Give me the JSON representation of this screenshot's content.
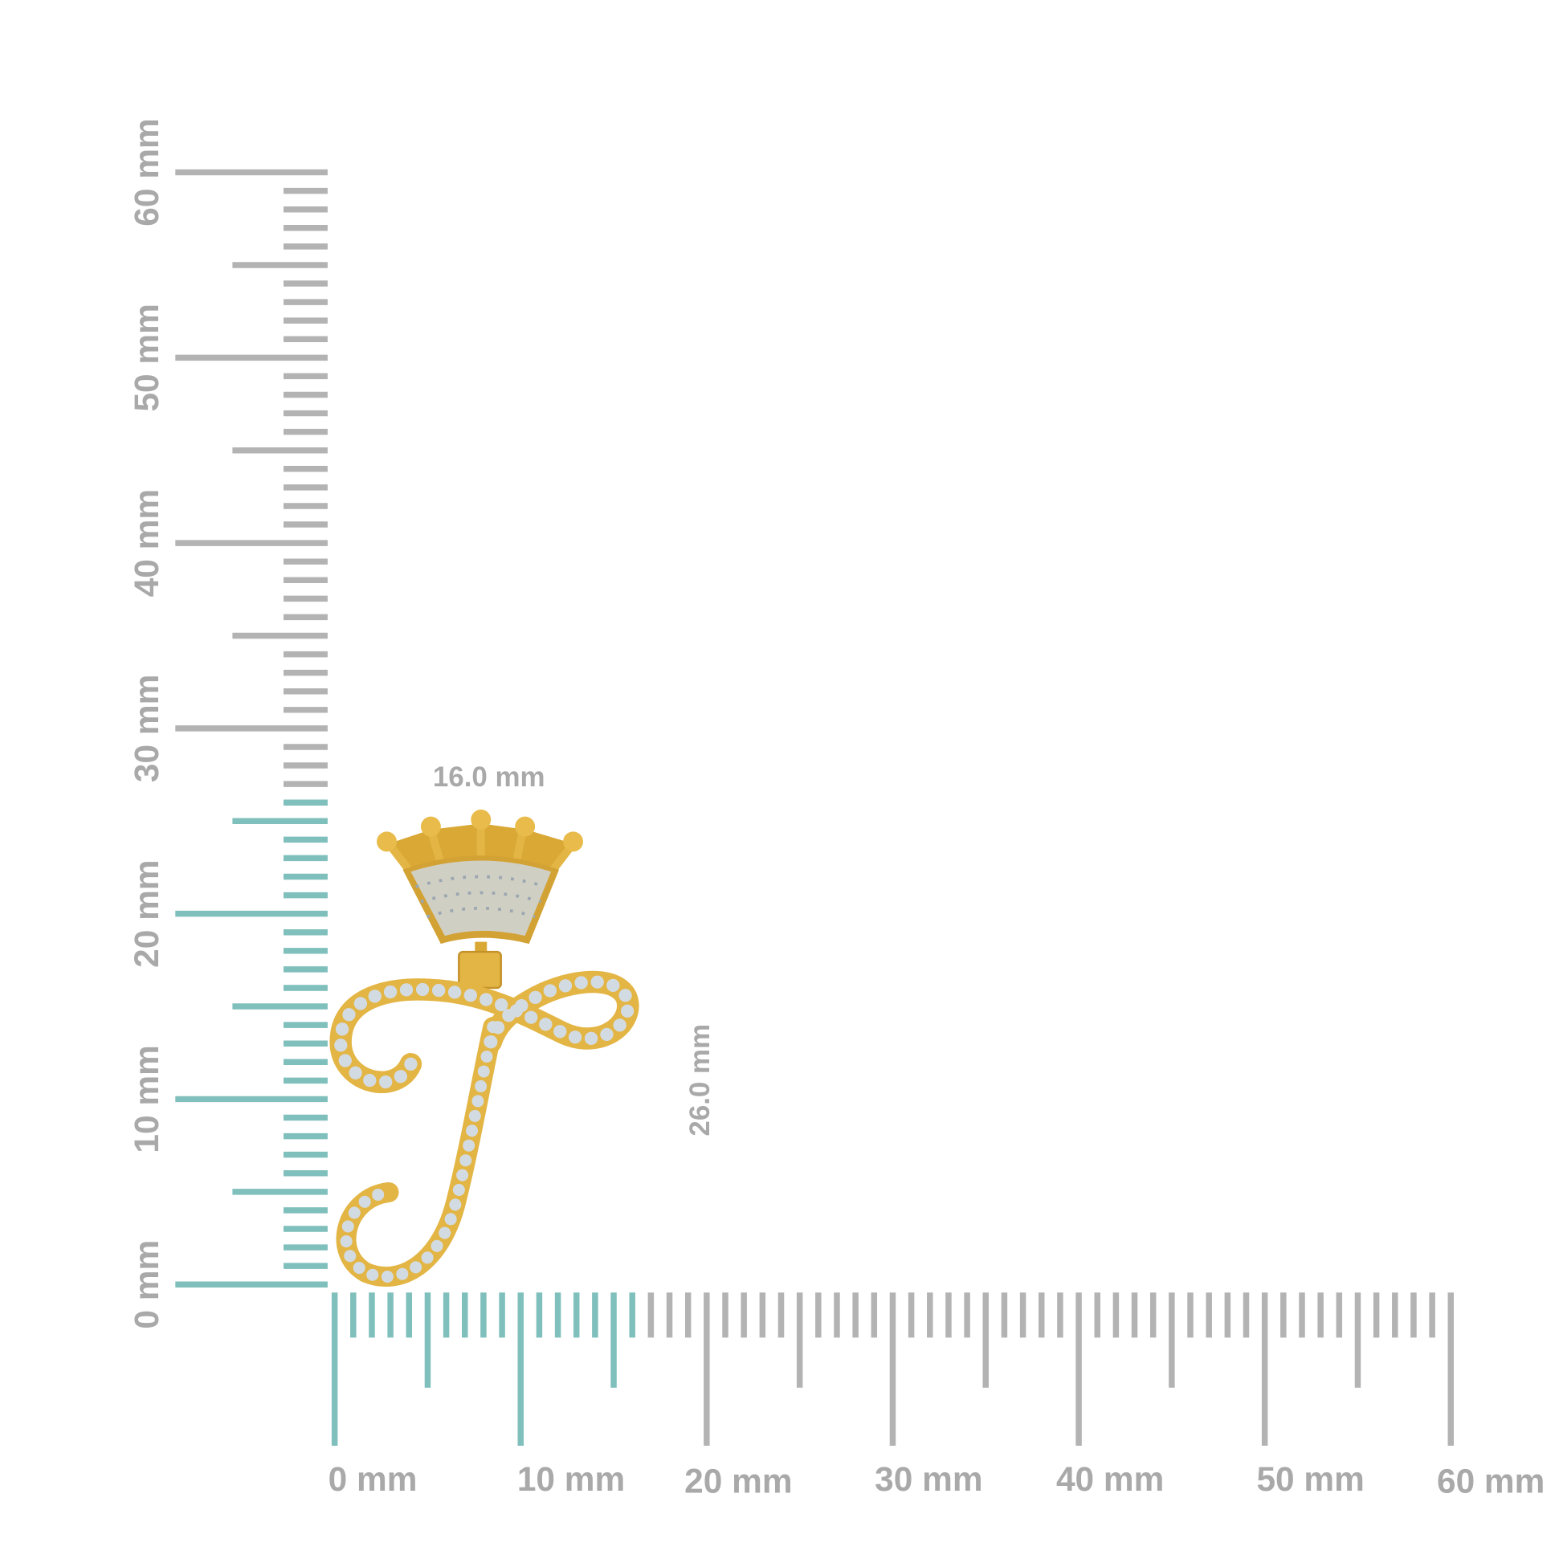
{
  "vertical_ruler": {
    "labels": [
      "0 mm",
      "10 mm",
      "20 mm",
      "30 mm",
      "40 mm",
      "50 mm",
      "60 mm"
    ],
    "highlight_until_mm": 26,
    "max_mm": 60
  },
  "horizontal_ruler": {
    "labels": [
      "0 mm",
      "10 mm",
      "20 mm",
      "30 mm",
      "40 mm",
      "50 mm",
      "60 mm"
    ],
    "highlight_until_mm": 16,
    "max_mm": 60
  },
  "dimensions": {
    "width": "16.0 mm",
    "height": "26.0 mm"
  },
  "colors": {
    "ruler": "#b3b3b3",
    "highlight": "#7fbfbc",
    "label": "#a9a9a9",
    "gold": "#e3b544",
    "diamond": "#d3dbe2"
  }
}
